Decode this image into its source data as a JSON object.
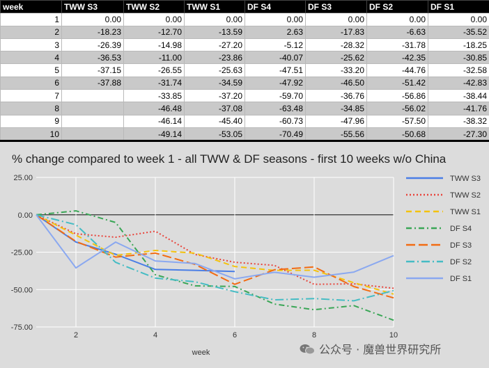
{
  "table": {
    "columns": [
      "week",
      "TWW S3",
      "TWW S2",
      "TWW S1",
      "DF S4",
      "DF S3",
      "DF S2",
      "DF S1"
    ],
    "rows": [
      [
        "1",
        "0.00",
        "0.00",
        "0.00",
        "0.00",
        "0.00",
        "0.00",
        "0.00"
      ],
      [
        "2",
        "-18.23",
        "-12.70",
        "-13.59",
        "2.63",
        "-17.83",
        "-6.63",
        "-35.52"
      ],
      [
        "3",
        "-26.39",
        "-14.98",
        "-27.20",
        "-5.12",
        "-28.32",
        "-31.78",
        "-18.25"
      ],
      [
        "4",
        "-36.53",
        "-11.00",
        "-23.86",
        "-40.07",
        "-25.62",
        "-42.35",
        "-30.85"
      ],
      [
        "5",
        "-37.15",
        "-26.55",
        "-25.63",
        "-47.51",
        "-33.20",
        "-44.76",
        "-32.58"
      ],
      [
        "6",
        "-37.88",
        "-31.74",
        "-34.59",
        "-47.92",
        "-46.50",
        "-51.42",
        "-42.83"
      ],
      [
        "7",
        "",
        "-33.85",
        "-37.20",
        "-59.70",
        "-36.76",
        "-56.86",
        "-38.44"
      ],
      [
        "8",
        "",
        "-46.48",
        "-37.08",
        "-63.48",
        "-34.85",
        "-56.02",
        "-41.76"
      ],
      [
        "9",
        "",
        "-46.14",
        "-45.40",
        "-60.73",
        "-47.96",
        "-57.50",
        "-38.32"
      ],
      [
        "10",
        "",
        "-49.14",
        "-53.05",
        "-70.49",
        "-55.56",
        "-50.68",
        "-27.30"
      ]
    ]
  },
  "chart_data": {
    "type": "line",
    "title": "% change compared to week 1 - all TWW & DF seasons - first 10 weeks w/o China",
    "xlabel": "week",
    "ylabel": "",
    "x": [
      1,
      2,
      3,
      4,
      5,
      6,
      7,
      8,
      9,
      10
    ],
    "xlim": [
      1,
      10
    ],
    "ylim": [
      -75,
      25
    ],
    "xticks": [
      2,
      4,
      6,
      8,
      10
    ],
    "yticks": [
      25,
      0,
      -25,
      -50,
      -75
    ],
    "ytick_labels": [
      "25.00",
      "0.00",
      "-25.00",
      "-50.00",
      "-75.00"
    ],
    "grid": true,
    "legend_position": "right",
    "series": [
      {
        "name": "TWW S3",
        "color": "#4a7ee6",
        "dash": "solid",
        "values": [
          0,
          -18.23,
          -26.39,
          -36.53,
          -37.15,
          -37.88,
          null,
          null,
          null,
          null
        ]
      },
      {
        "name": "TWW S2",
        "color": "#e8433a",
        "dash": "dot",
        "values": [
          0,
          -12.7,
          -14.98,
          -11.0,
          -26.55,
          -31.74,
          -33.85,
          -46.48,
          -46.14,
          -49.14
        ]
      },
      {
        "name": "TWW S1",
        "color": "#f4c20d",
        "dash": "dash",
        "values": [
          0,
          -13.59,
          -27.2,
          -23.86,
          -25.63,
          -34.59,
          -37.2,
          -37.08,
          -45.4,
          -53.05
        ]
      },
      {
        "name": "DF S4",
        "color": "#3aa656",
        "dash": "dashdot",
        "values": [
          0,
          2.63,
          -5.12,
          -40.07,
          -47.51,
          -47.92,
          -59.7,
          -63.48,
          -60.73,
          -70.49
        ]
      },
      {
        "name": "DF S3",
        "color": "#f26b12",
        "dash": "longdash",
        "values": [
          0,
          -17.83,
          -28.32,
          -25.62,
          -33.2,
          -46.5,
          -36.76,
          -34.85,
          -47.96,
          -55.56
        ]
      },
      {
        "name": "DF S2",
        "color": "#45bcc4",
        "dash": "dashdotlong",
        "values": [
          0,
          -6.63,
          -31.78,
          -42.35,
          -44.76,
          -51.42,
          -56.86,
          -56.02,
          -57.5,
          -50.68
        ]
      },
      {
        "name": "DF S1",
        "color": "#8aa8f0",
        "dash": "solid",
        "values": [
          0,
          -35.52,
          -18.25,
          -30.85,
          -32.58,
          -42.83,
          -38.44,
          -41.76,
          -38.32,
          -27.3
        ]
      }
    ]
  },
  "watermark": {
    "text": "公众号 · 魔兽世界研究所",
    "logo_icon": "wechat-logo-icon"
  }
}
